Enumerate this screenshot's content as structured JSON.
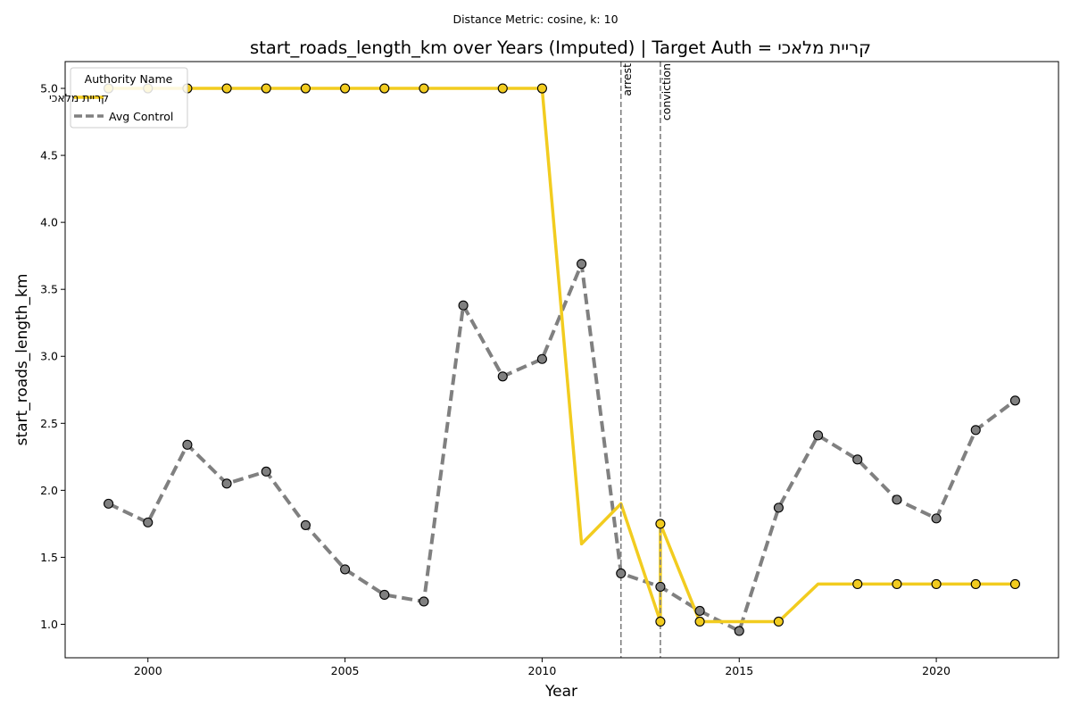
{
  "chart_data": {
    "type": "line",
    "suptitle": "Distance Metric: cosine, k: 10",
    "title": "start_roads_length_km over Years (Imputed) | Target Auth = קריית מלאכי",
    "xlabel": "Year",
    "ylabel": "start_roads_length_km",
    "xlim": [
      1997.9,
      2023.1
    ],
    "ylim": [
      0.75,
      5.2
    ],
    "xticks": [
      2000,
      2005,
      2010,
      2015,
      2020
    ],
    "yticks": [
      1.0,
      1.5,
      2.0,
      2.5,
      3.0,
      3.5,
      4.0,
      4.5,
      5.0
    ],
    "ytick_labels": [
      "1.0",
      "1.5",
      "2.0",
      "2.5",
      "3.0",
      "3.5",
      "4.0",
      "4.5",
      "5.0"
    ],
    "grid": false,
    "legend": {
      "title": "Authority Name",
      "placement": "top-left",
      "entries": [
        "קריית מלאכי",
        "Avg Control"
      ]
    },
    "colors": {
      "target": "#f2cc1f",
      "control": "#808080"
    },
    "series": [
      {
        "name": "קריית מלאכי",
        "style": "solid",
        "line_points": [
          [
            1999,
            5.0
          ],
          [
            2000,
            5.0
          ],
          [
            2001,
            5.0
          ],
          [
            2002,
            5.0
          ],
          [
            2003,
            5.0
          ],
          [
            2004,
            5.0
          ],
          [
            2005,
            5.0
          ],
          [
            2006,
            5.0
          ],
          [
            2007,
            5.0
          ],
          [
            2008,
            5.0
          ],
          [
            2009,
            5.0
          ],
          [
            2010,
            5.0
          ],
          [
            2011,
            1.6
          ],
          [
            2012,
            1.9
          ],
          [
            2013,
            1.02
          ],
          [
            2013,
            1.75
          ],
          [
            2014,
            1.02
          ],
          [
            2015,
            1.02
          ],
          [
            2016,
            1.02
          ],
          [
            2017,
            1.3
          ],
          [
            2018,
            1.3
          ],
          [
            2019,
            1.3
          ],
          [
            2020,
            1.3
          ],
          [
            2021,
            1.3
          ],
          [
            2022,
            1.3
          ]
        ],
        "markers": [
          [
            1999,
            5.0
          ],
          [
            2000,
            5.0
          ],
          [
            2001,
            5.0
          ],
          [
            2002,
            5.0
          ],
          [
            2003,
            5.0
          ],
          [
            2004,
            5.0
          ],
          [
            2005,
            5.0
          ],
          [
            2006,
            5.0
          ],
          [
            2007,
            5.0
          ],
          [
            2009,
            5.0
          ],
          [
            2010,
            5.0
          ],
          [
            2013,
            1.75
          ],
          [
            2013,
            1.02
          ],
          [
            2014,
            1.02
          ],
          [
            2016,
            1.02
          ],
          [
            2018,
            1.3
          ],
          [
            2019,
            1.3
          ],
          [
            2020,
            1.3
          ],
          [
            2021,
            1.3
          ],
          [
            2022,
            1.3
          ]
        ]
      },
      {
        "name": "Avg Control",
        "style": "dashed",
        "line_points": [
          [
            1999,
            1.9
          ],
          [
            2000,
            1.76
          ],
          [
            2001,
            2.34
          ],
          [
            2002,
            2.05
          ],
          [
            2003,
            2.14
          ],
          [
            2004,
            1.74
          ],
          [
            2005,
            1.41
          ],
          [
            2006,
            1.22
          ],
          [
            2007,
            1.17
          ],
          [
            2008,
            3.38
          ],
          [
            2009,
            2.85
          ],
          [
            2010,
            2.98
          ],
          [
            2011,
            3.69
          ],
          [
            2012,
            1.38
          ],
          [
            2013,
            1.28
          ],
          [
            2014,
            1.1
          ],
          [
            2015,
            0.95
          ],
          [
            2016,
            1.87
          ],
          [
            2017,
            2.41
          ],
          [
            2018,
            2.23
          ],
          [
            2019,
            1.93
          ],
          [
            2020,
            1.79
          ],
          [
            2021,
            2.45
          ],
          [
            2022,
            2.67
          ]
        ],
        "markers": [
          [
            1999,
            1.9
          ],
          [
            2000,
            1.76
          ],
          [
            2001,
            2.34
          ],
          [
            2002,
            2.05
          ],
          [
            2003,
            2.14
          ],
          [
            2004,
            1.74
          ],
          [
            2005,
            1.41
          ],
          [
            2006,
            1.22
          ],
          [
            2007,
            1.17
          ],
          [
            2008,
            3.38
          ],
          [
            2009,
            2.85
          ],
          [
            2010,
            2.98
          ],
          [
            2011,
            3.69
          ],
          [
            2012,
            1.38
          ],
          [
            2013,
            1.28
          ],
          [
            2014,
            1.1
          ],
          [
            2015,
            0.95
          ],
          [
            2016,
            1.87
          ],
          [
            2017,
            2.41
          ],
          [
            2018,
            2.23
          ],
          [
            2019,
            1.93
          ],
          [
            2020,
            1.79
          ],
          [
            2021,
            2.45
          ],
          [
            2022,
            2.67
          ]
        ]
      }
    ],
    "events": [
      {
        "label": "arrest",
        "x": 2012
      },
      {
        "label": "conviction",
        "x": 2013
      }
    ]
  }
}
